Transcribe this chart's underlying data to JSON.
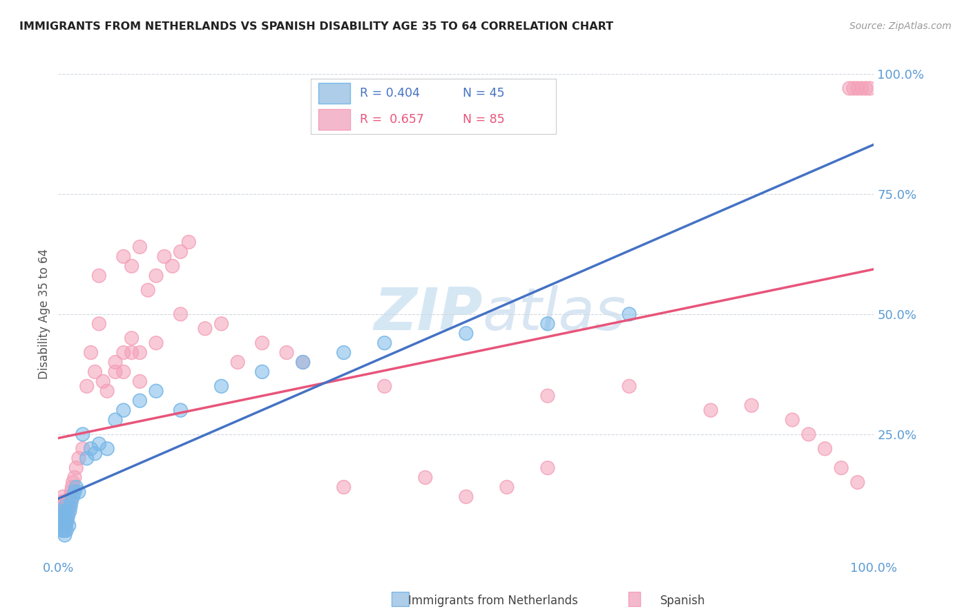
{
  "title": "IMMIGRANTS FROM NETHERLANDS VS SPANISH DISABILITY AGE 35 TO 64 CORRELATION CHART",
  "source": "Source: ZipAtlas.com",
  "ylabel": "Disability Age 35 to 64",
  "color_blue": "#7ab8e8",
  "color_pink": "#f4a0b8",
  "color_blue_line": "#4472C4",
  "color_pink_line": "#e8547a",
  "color_dashed": "#9ec8ec",
  "watermark_color": "#c5ddf0",
  "background_color": "#ffffff",
  "grid_color": "#d0d8e0",
  "legend_box_color": "#f0f0f0",
  "tick_color": "#5b9bd5",
  "blue_scatter_x": [
    0.003,
    0.004,
    0.004,
    0.005,
    0.005,
    0.005,
    0.006,
    0.006,
    0.007,
    0.007,
    0.008,
    0.008,
    0.009,
    0.009,
    0.01,
    0.01,
    0.011,
    0.012,
    0.013,
    0.014,
    0.015,
    0.016,
    0.018,
    0.02,
    0.022,
    0.025,
    0.03,
    0.035,
    0.04,
    0.045,
    0.05,
    0.06,
    0.07,
    0.08,
    0.1,
    0.12,
    0.15,
    0.2,
    0.25,
    0.3,
    0.35,
    0.4,
    0.5,
    0.6,
    0.7
  ],
  "blue_scatter_y": [
    0.07,
    0.06,
    0.08,
    0.05,
    0.07,
    0.09,
    0.06,
    0.08,
    0.05,
    0.07,
    0.04,
    0.08,
    0.06,
    0.1,
    0.05,
    0.09,
    0.07,
    0.08,
    0.06,
    0.09,
    0.1,
    0.11,
    0.12,
    0.13,
    0.14,
    0.13,
    0.25,
    0.2,
    0.22,
    0.21,
    0.23,
    0.22,
    0.28,
    0.3,
    0.32,
    0.34,
    0.3,
    0.35,
    0.38,
    0.4,
    0.42,
    0.44,
    0.46,
    0.48,
    0.5
  ],
  "pink_scatter_x": [
    0.002,
    0.003,
    0.003,
    0.004,
    0.004,
    0.005,
    0.005,
    0.005,
    0.006,
    0.006,
    0.006,
    0.007,
    0.007,
    0.008,
    0.008,
    0.008,
    0.009,
    0.009,
    0.01,
    0.01,
    0.011,
    0.012,
    0.013,
    0.014,
    0.015,
    0.016,
    0.017,
    0.018,
    0.02,
    0.022,
    0.025,
    0.03,
    0.035,
    0.04,
    0.045,
    0.05,
    0.055,
    0.06,
    0.07,
    0.08,
    0.09,
    0.1,
    0.12,
    0.15,
    0.18,
    0.2,
    0.22,
    0.25,
    0.28,
    0.3,
    0.05,
    0.08,
    0.09,
    0.1,
    0.11,
    0.12,
    0.13,
    0.14,
    0.15,
    0.16,
    0.07,
    0.08,
    0.09,
    0.1,
    0.4,
    0.6,
    0.7,
    0.8,
    0.85,
    0.9,
    0.92,
    0.94,
    0.96,
    0.98,
    0.97,
    0.975,
    0.98,
    0.985,
    0.99,
    0.995,
    0.35,
    0.45,
    0.5,
    0.55,
    0.6
  ],
  "pink_scatter_y": [
    0.08,
    0.06,
    0.1,
    0.07,
    0.09,
    0.05,
    0.08,
    0.11,
    0.06,
    0.09,
    0.12,
    0.07,
    0.1,
    0.05,
    0.08,
    0.11,
    0.06,
    0.09,
    0.07,
    0.11,
    0.08,
    0.09,
    0.1,
    0.11,
    0.12,
    0.13,
    0.14,
    0.15,
    0.16,
    0.18,
    0.2,
    0.22,
    0.35,
    0.42,
    0.38,
    0.48,
    0.36,
    0.34,
    0.38,
    0.42,
    0.45,
    0.42,
    0.44,
    0.5,
    0.47,
    0.48,
    0.4,
    0.44,
    0.42,
    0.4,
    0.58,
    0.62,
    0.6,
    0.64,
    0.55,
    0.58,
    0.62,
    0.6,
    0.63,
    0.65,
    0.4,
    0.38,
    0.42,
    0.36,
    0.35,
    0.33,
    0.35,
    0.3,
    0.31,
    0.28,
    0.25,
    0.22,
    0.18,
    0.15,
    0.97,
    0.97,
    0.97,
    0.97,
    0.97,
    0.97,
    0.14,
    0.16,
    0.12,
    0.14,
    0.18
  ]
}
